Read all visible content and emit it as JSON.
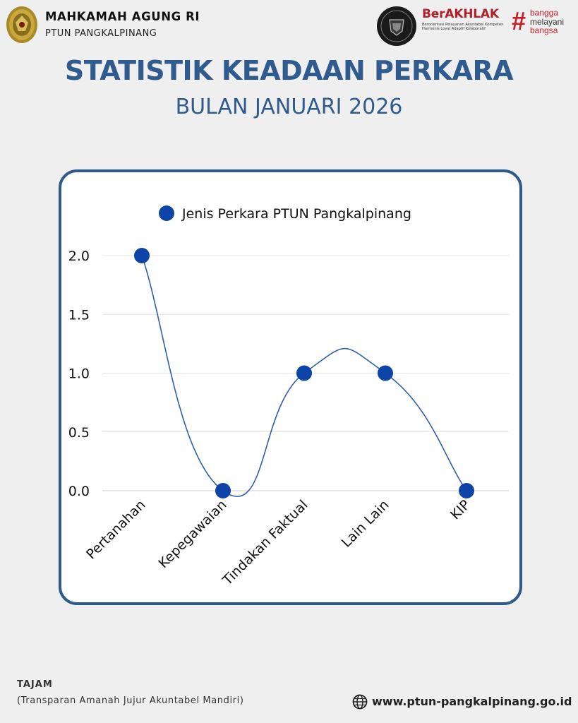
{
  "header": {
    "org_name": "MAHKAMAH AGUNG RI",
    "org_sub": "PTUN PANGKALPINANG",
    "logo_icons": [
      "garuda-seal-icon",
      "kementerian-badge-icon",
      "berakhlak-logo-icon",
      "bangga-melayani-logo-icon"
    ],
    "berakhlak_title": "BerAKHLAK",
    "berakhlak_tagline_1": "Berorientasi Pelayanan Akuntabel Kompeten",
    "berakhlak_tagline_2": "Harmonis Loyal Adaptif Kolaboratif",
    "bangga_1": "bangga",
    "bangga_2": "melayani",
    "bangga_3": "bangsa"
  },
  "page": {
    "title": "STATISTIK KEADAAN PERKARA",
    "subtitle": "BULAN JANUARI 2026"
  },
  "chart_data": {
    "type": "line",
    "categories": [
      "Pertanahan",
      "Kepegawaian",
      "Tindakan Faktual",
      "Lain Lain",
      "KIP"
    ],
    "series": [
      {
        "name": "Jenis Perkara PTUN Pangkalpinang",
        "values": [
          2,
          0,
          1,
          1,
          0
        ]
      }
    ],
    "y_ticks": [
      "0.0",
      "0.5",
      "1.0",
      "1.5",
      "2.0"
    ],
    "ylim": [
      0,
      2
    ],
    "grid": true,
    "smooth": true,
    "legend_position": "top",
    "colors": {
      "line": "#2f5fae",
      "marker": "#0e44a8",
      "grid": "#e4e4e4"
    }
  },
  "footer": {
    "tag": "TAJAM",
    "tag_expansion": "(Transparan Amanah Jujur Akuntabel Mandiri)",
    "website": "www.ptun-pangkalpinang.go.id"
  },
  "colors": {
    "title": "#2f5b8f",
    "card_border": "#2e5b8c",
    "background": "#efefef"
  }
}
